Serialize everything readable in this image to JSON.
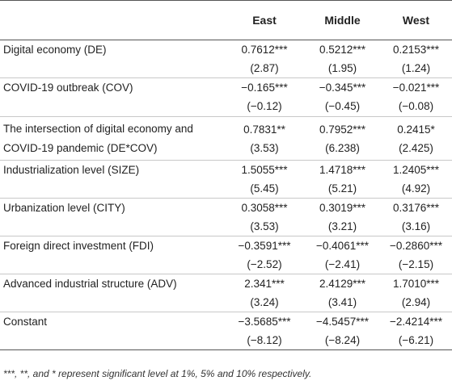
{
  "table": {
    "headers": [
      "",
      "East",
      "Middle",
      "West"
    ],
    "rows": [
      {
        "label_lines": [
          "Digital economy (DE)"
        ],
        "east": [
          "0.7612***",
          "(2.87)"
        ],
        "middle": [
          "0.5212***",
          "(1.95)"
        ],
        "west": [
          "0.2153***",
          "(1.24)"
        ]
      },
      {
        "label_lines": [
          "COVID-19 outbreak (COV)"
        ],
        "east": [
          "−0.165***",
          "(−0.12)"
        ],
        "middle": [
          "−0.345***",
          "(−0.45)"
        ],
        "west": [
          "−0.021***",
          "(−0.08)"
        ]
      },
      {
        "label_lines": [
          "The intersection of digital economy and",
          "COVID-19 pandemic (DE*COV)"
        ],
        "east": [
          "0.7831**",
          "(3.53)"
        ],
        "middle": [
          "0.7952***",
          "(6.238)"
        ],
        "west": [
          "0.2415*",
          "(2.425)"
        ]
      },
      {
        "label_lines": [
          "Industrialization level (SIZE)"
        ],
        "east": [
          "1.5055***",
          "(5.45)"
        ],
        "middle": [
          "1.4718***",
          "(5.21)"
        ],
        "west": [
          "1.2405***",
          "(4.92)"
        ]
      },
      {
        "label_lines": [
          "Urbanization level (CITY)"
        ],
        "east": [
          "0.3058***",
          "(3.53)"
        ],
        "middle": [
          "0.3019***",
          "(3.21)"
        ],
        "west": [
          "0.3176***",
          "(3.16)"
        ]
      },
      {
        "label_lines": [
          "Foreign direct investment (FDI)"
        ],
        "east": [
          "−0.3591***",
          "(−2.52)"
        ],
        "middle": [
          "−0.4061***",
          "(−2.41)"
        ],
        "west": [
          "−0.2860***",
          "(−2.15)"
        ]
      },
      {
        "label_lines": [
          "Advanced industrial structure (ADV)"
        ],
        "east": [
          "2.341***",
          "(3.24)"
        ],
        "middle": [
          "2.4129***",
          "(3.41)"
        ],
        "west": [
          "1.7010***",
          "(2.94)"
        ]
      },
      {
        "label_lines": [
          "Constant"
        ],
        "east": [
          "−3.5685***",
          "(−8.12)"
        ],
        "middle": [
          "−4.5457***",
          "(−8.24)"
        ],
        "west": [
          "−2.4214***",
          "(−6.21)"
        ]
      }
    ]
  },
  "note": "***, **, and * represent significant level at 1%, 5% and 10% respectively."
}
